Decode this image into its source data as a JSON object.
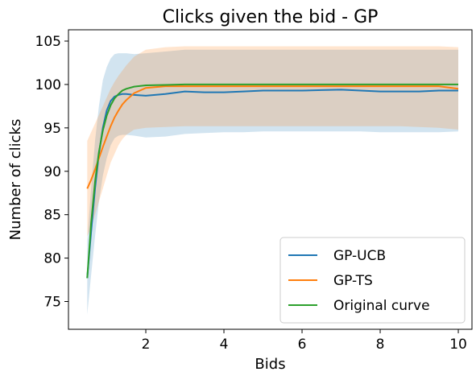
{
  "chart_data": {
    "type": "line",
    "title": "Clicks given the bid - GP",
    "xlabel": "Bids",
    "ylabel": "Number of clicks",
    "xlim": [
      0.02,
      10.35
    ],
    "ylim": [
      71.8,
      106.3
    ],
    "xticks": [
      2,
      4,
      6,
      8,
      10
    ],
    "yticks": [
      75,
      80,
      85,
      90,
      95,
      100,
      105
    ],
    "grid": false,
    "legend": "bottom-right",
    "series": [
      {
        "name": "GP-UCB",
        "color": "#1f77b4",
        "x": [
          0.5,
          0.6,
          0.7,
          0.8,
          0.9,
          1.0,
          1.1,
          1.2,
          1.3,
          1.4,
          1.5,
          1.7,
          2.0,
          2.5,
          3.0,
          3.5,
          4.0,
          4.5,
          5.0,
          6.0,
          6.5,
          7.0,
          7.5,
          8.0,
          8.5,
          9.0,
          9.5,
          10.0
        ],
        "y": [
          77.7,
          83.0,
          88.0,
          92.0,
          95.0,
          97.0,
          98.1,
          98.6,
          98.8,
          98.9,
          98.9,
          98.8,
          98.7,
          98.9,
          99.2,
          99.1,
          99.1,
          99.2,
          99.3,
          99.3,
          99.35,
          99.4,
          99.3,
          99.2,
          99.2,
          99.2,
          99.3,
          99.3
        ],
        "band_upper": [
          82.0,
          88.0,
          93.5,
          97.5,
          100.5,
          102.0,
          103.0,
          103.5,
          103.6,
          103.6,
          103.6,
          103.5,
          103.6,
          103.8,
          104.0,
          104.0,
          104.0,
          104.0,
          104.0,
          104.0,
          104.0,
          104.0,
          104.0,
          104.0,
          104.0,
          104.0,
          104.0,
          104.0
        ],
        "band_lower": [
          73.5,
          78.0,
          82.5,
          86.5,
          89.5,
          91.5,
          93.0,
          93.8,
          94.1,
          94.2,
          94.2,
          94.1,
          93.9,
          94.0,
          94.3,
          94.4,
          94.5,
          94.5,
          94.6,
          94.6,
          94.6,
          94.6,
          94.6,
          94.5,
          94.5,
          94.5,
          94.5,
          94.6
        ]
      },
      {
        "name": "GP-TS",
        "color": "#ff7f0e",
        "x": [
          0.5,
          0.6,
          0.7,
          0.8,
          0.9,
          1.0,
          1.1,
          1.2,
          1.3,
          1.4,
          1.5,
          1.7,
          2.0,
          2.5,
          3.0,
          3.5,
          4.0,
          4.5,
          5.0,
          6.0,
          6.5,
          7.0,
          7.5,
          8.0,
          8.5,
          9.0,
          9.5,
          10.0
        ],
        "y": [
          88.0,
          89.0,
          90.2,
          91.5,
          92.8,
          94.0,
          95.2,
          96.2,
          97.0,
          97.7,
          98.2,
          99.0,
          99.6,
          99.8,
          99.8,
          99.8,
          99.8,
          99.8,
          99.8,
          99.8,
          99.8,
          99.8,
          99.8,
          99.8,
          99.8,
          99.8,
          99.8,
          99.5
        ],
        "band_upper": [
          93.5,
          94.5,
          95.5,
          96.5,
          97.5,
          98.5,
          99.5,
          100.3,
          101.0,
          101.6,
          102.2,
          103.2,
          104.0,
          104.3,
          104.4,
          104.4,
          104.4,
          104.4,
          104.4,
          104.4,
          104.4,
          104.4,
          104.4,
          104.4,
          104.4,
          104.4,
          104.4,
          104.3
        ],
        "band_lower": [
          82.5,
          83.5,
          85.0,
          86.5,
          88.0,
          89.5,
          91.0,
          92.0,
          93.0,
          93.7,
          94.2,
          94.8,
          95.0,
          95.1,
          95.2,
          95.2,
          95.2,
          95.2,
          95.2,
          95.2,
          95.2,
          95.2,
          95.2,
          95.2,
          95.2,
          95.1,
          95.0,
          94.8
        ]
      },
      {
        "name": "Original curve",
        "color": "#2ca02c",
        "x": [
          0.5,
          0.6,
          0.7,
          0.8,
          0.9,
          1.0,
          1.1,
          1.2,
          1.3,
          1.4,
          1.5,
          1.7,
          2.0,
          2.5,
          3.0,
          4.0,
          5.0,
          6.0,
          7.0,
          8.0,
          9.0,
          10.0
        ],
        "y": [
          77.7,
          84.0,
          88.8,
          92.2,
          94.7,
          96.4,
          97.6,
          98.4,
          98.9,
          99.3,
          99.5,
          99.75,
          99.9,
          99.95,
          100.0,
          100.0,
          100.0,
          100.0,
          100.0,
          100.0,
          100.0,
          100.0
        ]
      }
    ]
  }
}
